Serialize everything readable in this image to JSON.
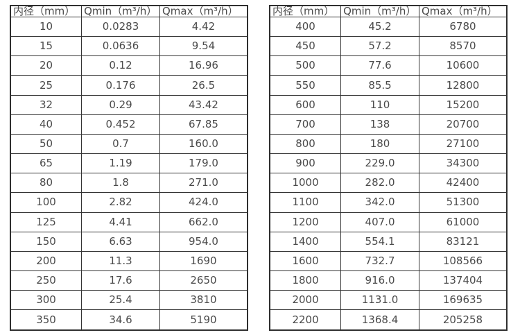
{
  "colors": {
    "background": "#ffffff",
    "text": "#4a4a4a",
    "border": "#333333"
  },
  "tables": [
    {
      "name": "flow-spec-small-diameters",
      "headers": [
        "内径（mm）",
        "Qmin（m³/h）",
        "Qmax（m³/h）"
      ],
      "rows": [
        [
          "10",
          "0.0283",
          "4.42"
        ],
        [
          "15",
          "0.0636",
          "9.54"
        ],
        [
          "20",
          "0.12",
          "16.96"
        ],
        [
          "25",
          "0.176",
          "26.5"
        ],
        [
          "32",
          "0.29",
          "43.42"
        ],
        [
          "40",
          "0.452",
          "67.85"
        ],
        [
          "50",
          "0.7",
          "160.0"
        ],
        [
          "65",
          "1.19",
          "179.0"
        ],
        [
          "80",
          "1.8",
          "271.0"
        ],
        [
          "100",
          "2.82",
          "424.0"
        ],
        [
          "125",
          "4.41",
          "662.0"
        ],
        [
          "150",
          "6.63",
          "954.0"
        ],
        [
          "200",
          "11.3",
          "1690"
        ],
        [
          "250",
          "17.6",
          "2650"
        ],
        [
          "300",
          "25.4",
          "3810"
        ],
        [
          "350",
          "34.6",
          "5190"
        ]
      ]
    },
    {
      "name": "flow-spec-large-diameters",
      "headers": [
        "内径（mm）",
        "Qmin（m³/h）",
        "Qmax（m³/h）"
      ],
      "rows": [
        [
          "400",
          "45.2",
          "6780"
        ],
        [
          "450",
          "57.2",
          "8570"
        ],
        [
          "500",
          "77.6",
          "10600"
        ],
        [
          "550",
          "85.5",
          "12800"
        ],
        [
          "600",
          "110",
          "15200"
        ],
        [
          "700",
          "138",
          "20700"
        ],
        [
          "800",
          "180",
          "27100"
        ],
        [
          "900",
          "229.0",
          "34300"
        ],
        [
          "1000",
          "282.0",
          "42400"
        ],
        [
          "1100",
          "342.0",
          "51300"
        ],
        [
          "1200",
          "407.0",
          "61000"
        ],
        [
          "1400",
          "554.1",
          "83121"
        ],
        [
          "1600",
          "732.7",
          "108566"
        ],
        [
          "1800",
          "916.0",
          "137404"
        ],
        [
          "2000",
          "1131.0",
          "169635"
        ],
        [
          "2200",
          "1368.4",
          "205258"
        ]
      ]
    }
  ]
}
